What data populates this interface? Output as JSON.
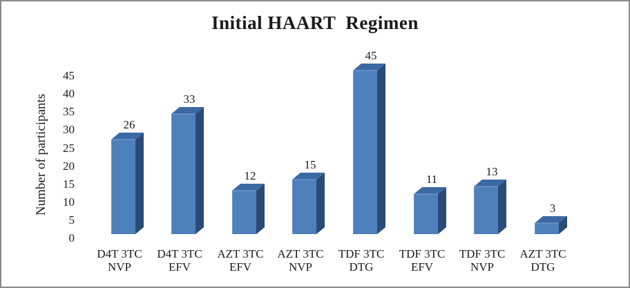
{
  "chart_data": {
    "type": "bar",
    "style": "3d-column",
    "title": "Initial HAART  Regimen",
    "xlabel": "",
    "ylabel": "Number of participants",
    "categories": [
      {
        "line1": "D4T 3TC",
        "line2": "NVP"
      },
      {
        "line1": "D4T 3TC",
        "line2": "EFV"
      },
      {
        "line1": "AZT 3TC",
        "line2": "EFV"
      },
      {
        "line1": "AZT 3TC",
        "line2": "NVP"
      },
      {
        "line1": "TDF 3TC",
        "line2": "DTG"
      },
      {
        "line1": "TDF 3TC",
        "line2": "EFV"
      },
      {
        "line1": "TDF 3TC",
        "line2": "NVP"
      },
      {
        "line1": "AZT 3TC",
        "line2": "DTG"
      }
    ],
    "values": [
      26,
      33,
      12,
      15,
      45,
      11,
      13,
      3
    ],
    "data_labels_shown": true,
    "y_ticks": [
      0,
      5,
      10,
      15,
      20,
      25,
      30,
      35,
      40,
      45
    ],
    "ylim": [
      0,
      45
    ],
    "grid": false,
    "legend": false,
    "axis_lines": false,
    "colors": {
      "bar_front": "#4e80bc",
      "bar_top": "#3b69a4",
      "bar_side": "#2b4b77",
      "bar_highlight": "#84a5d2",
      "text": "#1b1b1b",
      "frame_border": "#8a8a8a",
      "background": "#ffffff"
    }
  }
}
